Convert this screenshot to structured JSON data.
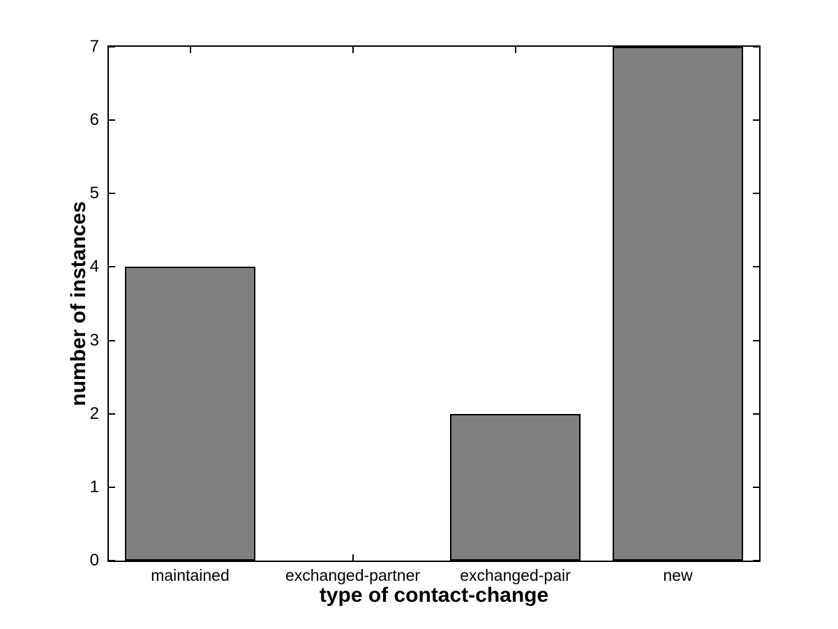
{
  "chart_data": {
    "type": "bar",
    "title": "",
    "categories": [
      "maintained",
      "exchanged-partner",
      "exchanged-pair",
      "new"
    ],
    "values": [
      4,
      0,
      2,
      7
    ],
    "xlabel": "type of contact-change",
    "ylabel": "number of instances",
    "ylim": [
      0,
      7
    ],
    "yticks": [
      "0",
      "1",
      "2",
      "3",
      "4",
      "5",
      "6",
      "7"
    ],
    "bar_width_fraction": 0.8,
    "grid": false,
    "legend": null,
    "axis_style": "matlab-box-inward-ticks",
    "colors": {
      "bar_fill": "#808080",
      "bar_edge": "#000000",
      "axis": "#000000",
      "background": "#ffffff",
      "text": "#000000"
    }
  }
}
